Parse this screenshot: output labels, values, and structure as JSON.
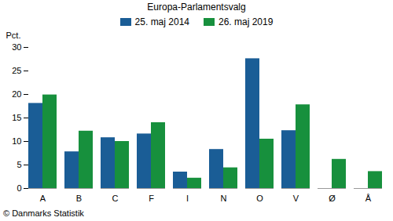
{
  "chart_data": {
    "type": "bar",
    "title": "Europa-Parlamentsvalg",
    "ylabel": "Pct.",
    "caption": "© Danmarks Statistik",
    "categories": [
      "A",
      "B",
      "C",
      "F",
      "I",
      "N",
      "O",
      "V",
      "Ø",
      "Å"
    ],
    "series": [
      {
        "name": "25. maj 2014",
        "color": "#1a5d96",
        "values": [
          18.1,
          7.8,
          10.8,
          11.6,
          3.5,
          8.3,
          27.6,
          12.3,
          null,
          null
        ]
      },
      {
        "name": "26. maj 2019",
        "color": "#17903d",
        "values": [
          19.9,
          12.2,
          10.0,
          14.0,
          2.2,
          4.4,
          10.5,
          17.8,
          6.2,
          3.6
        ]
      }
    ],
    "ylim": [
      0,
      30
    ],
    "yticks": [
      0,
      5,
      10,
      15,
      20,
      25,
      30
    ],
    "grid": false,
    "legend": "top"
  }
}
